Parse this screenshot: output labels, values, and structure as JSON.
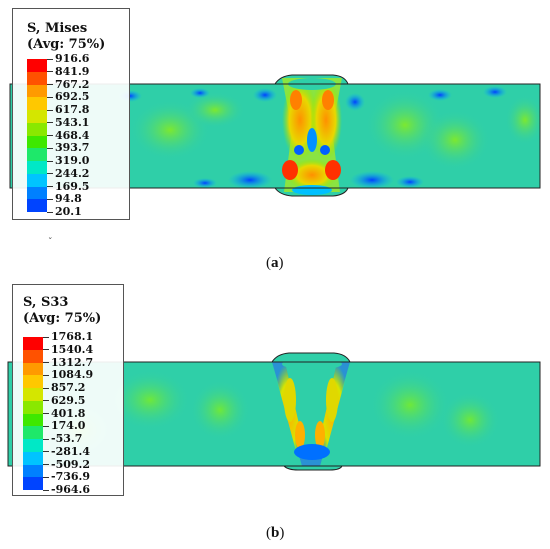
{
  "figures": [
    {
      "id": "a",
      "legend_title": "S, Mises",
      "legend_sub": "(Avg: 75%)",
      "legend_values": [
        "916.6",
        "841.9",
        "767.2",
        "692.5",
        "617.8",
        "543.1",
        "468.4",
        "393.7",
        "319.0",
        "244.2",
        "169.5",
        "94.8",
        "20.1"
      ],
      "caption_open": "(",
      "caption_letter": "a",
      "caption_close": ")",
      "stray_mark": "ˇ"
    },
    {
      "id": "b",
      "legend_title": "S, S33",
      "legend_sub": "(Avg: 75%)",
      "legend_values": [
        "1768.1",
        "1540.4",
        "1312.7",
        "1084.9",
        "857.2",
        "629.5",
        "401.8",
        "174.0",
        "-53.7",
        "-281.4",
        "-509.2",
        "-736.9",
        "-964.6"
      ],
      "caption_open": "(",
      "caption_letter": "b",
      "caption_close": ")"
    }
  ],
  "colors": {
    "scale": [
      "#ff0000",
      "#ff5200",
      "#ff9a00",
      "#ffc800",
      "#d4e600",
      "#8ae800",
      "#3ee800",
      "#1ee86a",
      "#00e8c6",
      "#00c4ff",
      "#0080ff",
      "#0044ff",
      "#0000ff"
    ],
    "base": "#2fcfa8",
    "deep_base": "#1fc38a"
  }
}
